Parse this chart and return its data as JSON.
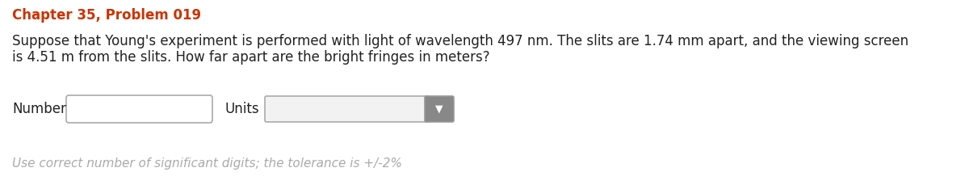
{
  "title": "Chapter 35, Problem 019",
  "title_color": "#cc3300",
  "title_fontsize": 12,
  "body_text_line1": "Suppose that Young's experiment is performed with light of wavelength 497 nm. The slits are 1.74 mm apart, and the viewing screen",
  "body_text_line2": "is 4.51 m from the slits. How far apart are the bright fringes in meters?",
  "body_fontsize": 12,
  "body_color": "#222222",
  "number_label": "Number",
  "units_label": "Units",
  "footer_text": "Use correct number of significant digits; the tolerance is +/-2%",
  "footer_color": "#aaaaaa",
  "footer_fontsize": 11,
  "bg_color": "#ffffff",
  "label_fontsize": 12
}
